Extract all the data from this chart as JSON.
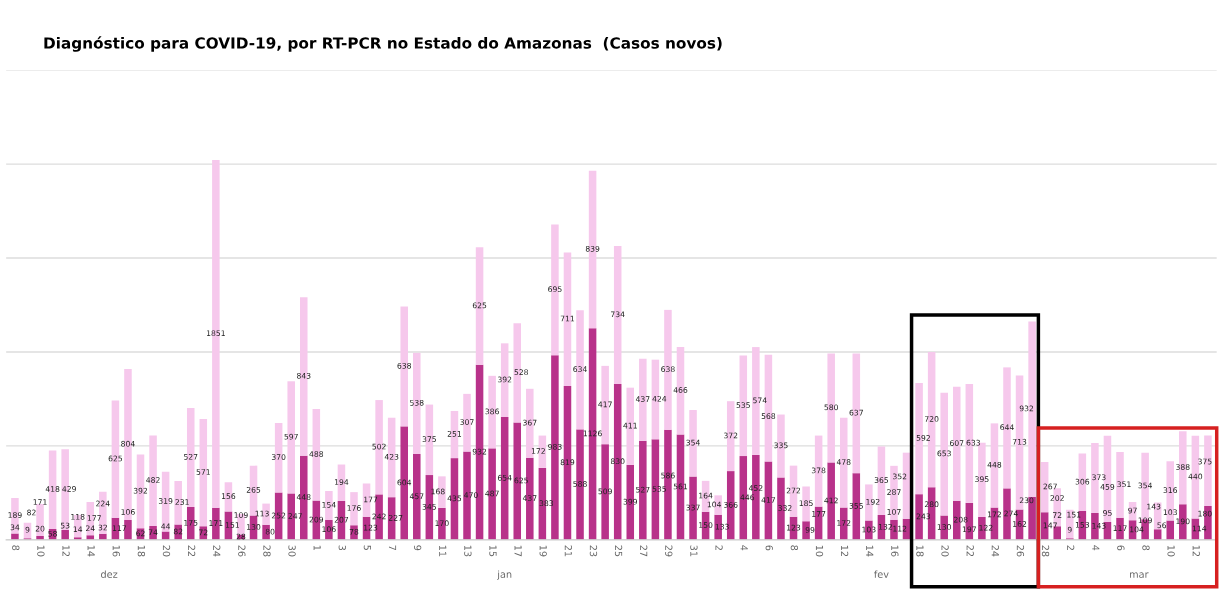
{
  "chart_data": {
    "type": "bar",
    "stacked": true,
    "title": "Diagnóstico para COVID-19, por RT-PCR no Estado do Amazonas  (Casos novos)",
    "categories": [
      "8",
      null,
      "10",
      null,
      "12",
      null,
      "14",
      null,
      "16",
      null,
      "18",
      null,
      "20",
      null,
      "22",
      null,
      "24",
      null,
      "26",
      null,
      "28",
      null,
      "30",
      null,
      "1",
      null,
      "3",
      null,
      "5",
      null,
      "7",
      null,
      "9",
      null,
      "11",
      null,
      "13",
      null,
      "15",
      null,
      "17",
      null,
      "19",
      null,
      "21",
      null,
      "23",
      null,
      "25",
      null,
      "27",
      null,
      "29",
      null,
      "31",
      null,
      "2",
      null,
      "4",
      null,
      "6",
      null,
      "8",
      null,
      "10",
      null,
      "12",
      null,
      "14",
      null,
      "16",
      null,
      "18",
      null,
      "20",
      null,
      "22",
      null,
      "24",
      null,
      "26",
      null,
      "28",
      null,
      "2",
      null,
      "4",
      null,
      "6",
      null,
      "8",
      null,
      "10",
      null,
      "12",
      null
    ],
    "series": [
      {
        "color": "#b8328a",
        "values": [
          34,
          9,
          20,
          58,
          53,
          14,
          24,
          32,
          117,
          106,
          62,
          74,
          44,
          82,
          175,
          72,
          171,
          151,
          28,
          130,
          80,
          252,
          247,
          448,
          209,
          106,
          207,
          78,
          123,
          242,
          227,
          604,
          457,
          345,
          170,
          435,
          470,
          932,
          487,
          654,
          625,
          437,
          383,
          983,
          819,
          588,
          1126,
          509,
          830,
          399,
          527,
          535,
          586,
          561,
          337,
          150,
          133,
          366,
          446,
          452,
          417,
          332,
          123,
          99,
          177,
          412,
          172,
          355,
          103,
          132,
          107,
          112,
          243,
          280,
          130,
          208,
          197,
          122,
          172,
          274,
          162,
          230,
          147,
          72,
          9,
          153,
          143,
          95,
          117,
          104,
          109,
          56,
          103,
          190,
          114,
          180
        ]
      },
      {
        "color": "#f6c8ec",
        "values": [
          189,
          82,
          171,
          418,
          429,
          118,
          177,
          224,
          625,
          804,
          392,
          482,
          319,
          231,
          527,
          571,
          1851,
          156,
          109,
          265,
          113,
          370,
          597,
          843,
          488,
          154,
          194,
          176,
          177,
          502,
          423,
          638,
          538,
          375,
          168,
          251,
          307,
          625,
          386,
          392,
          528,
          367,
          172,
          695,
          711,
          634,
          839,
          417,
          734,
          411,
          437,
          424,
          638,
          466,
          354,
          164,
          104,
          372,
          535,
          574,
          568,
          335,
          272,
          185,
          378,
          580,
          478,
          637,
          192,
          365,
          287,
          352,
          592,
          720,
          653,
          607,
          633,
          395,
          448,
          644,
          713,
          932,
          267,
          202,
          151,
          306,
          373,
          459,
          351,
          97,
          354,
          143,
          316,
          388,
          440,
          375
        ]
      }
    ],
    "ylim": [
      0,
      2500
    ],
    "yticks": [
      {
        "value": 0,
        "label": null
      },
      {
        "value": 500,
        "label": null
      },
      {
        "value": 1000,
        "label": null
      },
      {
        "value": 1500,
        "label": null
      },
      {
        "value": 2000,
        "label": null
      },
      {
        "value": 2500,
        "label": null
      }
    ],
    "tick_labels": "x",
    "grid": "y",
    "data_labels": true,
    "annotations": [
      "dez",
      "jan",
      "fev",
      "mar"
    ]
  }
}
